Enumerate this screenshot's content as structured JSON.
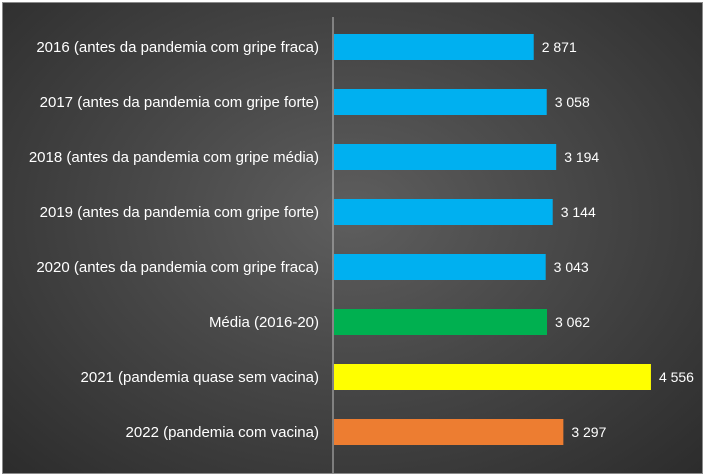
{
  "chart_data": {
    "type": "bar",
    "orientation": "horizontal",
    "title": "",
    "xlabel": "",
    "ylabel": "",
    "xlim": [
      0,
      4600
    ],
    "grid": false,
    "legend": "none",
    "categories": [
      "2016 (antes da pandemia com gripe fraca)",
      "2017 (antes da pandemia com gripe forte)",
      "2018 (antes da pandemia com gripe média)",
      "2019 (antes da pandemia com gripe forte)",
      "2020 (antes da pandemia com gripe fraca)",
      "Média (2016-20)",
      "2021 (pandemia quase sem vacina)",
      "2022 (pandemia com vacina)"
    ],
    "values": [
      2871,
      3058,
      3194,
      3144,
      3043,
      3062,
      4556,
      3297
    ],
    "value_labels": [
      "2 871",
      "3 058",
      "3 194",
      "3 144",
      "3 043",
      "3 062",
      "4 556",
      "3 297"
    ],
    "bar_colors": [
      "#00b0f0",
      "#00b0f0",
      "#00b0f0",
      "#00b0f0",
      "#00b0f0",
      "#00b050",
      "#ffff00",
      "#ed7d31"
    ]
  }
}
